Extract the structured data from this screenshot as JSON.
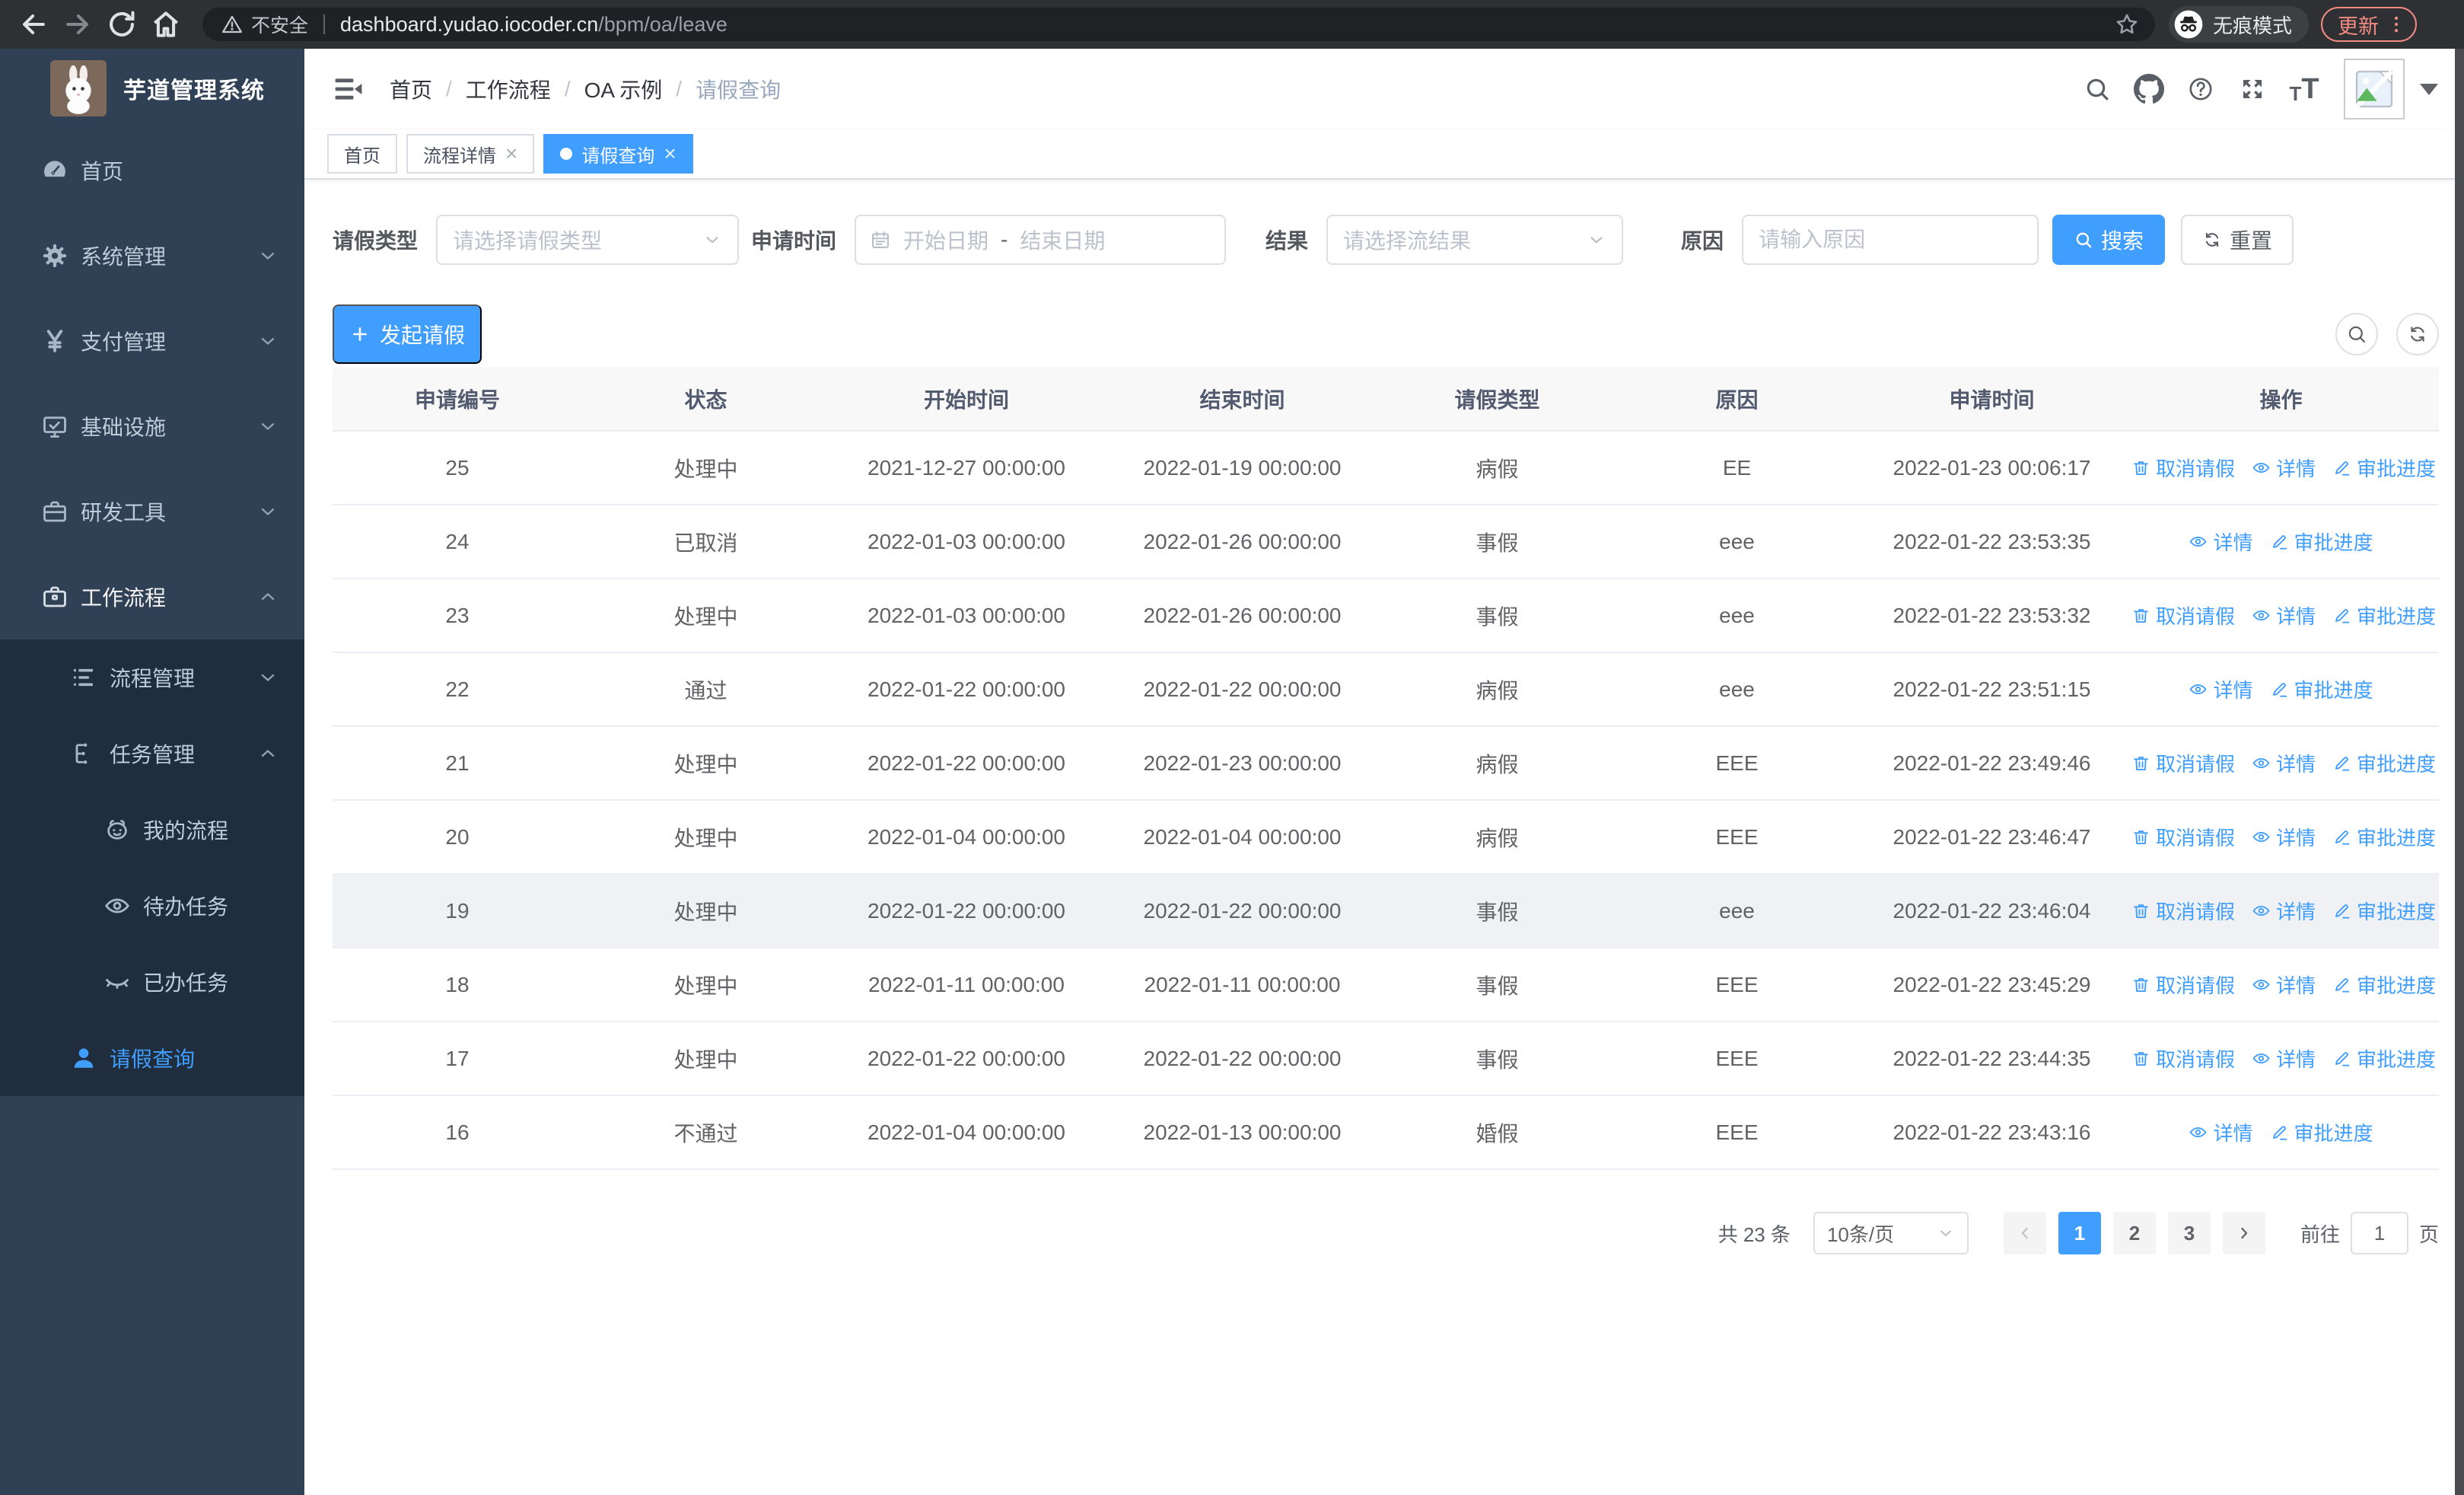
{
  "colors": {
    "accent": "#409eff",
    "sidebar_bg": "#304156",
    "submenu_bg": "#1f2d3d",
    "update_btn": "#f28b82",
    "table_header_bg": "#f8f8f9"
  },
  "browser": {
    "security_label": "不安全",
    "url_host": "dashboard.yudao.iocoder.cn",
    "url_path": "/bpm/oa/leave",
    "incognito_label": "无痕模式",
    "update_label": "更新"
  },
  "sidebar": {
    "title": "芋道管理系统",
    "items": [
      {
        "label": "首页",
        "icon": "dashboard-icon",
        "level": 1,
        "group": "top"
      },
      {
        "label": "系统管理",
        "icon": "gear-icon",
        "level": 1,
        "chevron": "down",
        "group": "top"
      },
      {
        "label": "支付管理",
        "icon": "yen-icon",
        "level": 1,
        "chevron": "down",
        "group": "top"
      },
      {
        "label": "基础设施",
        "icon": "monitor-icon",
        "level": 1,
        "chevron": "down",
        "group": "top"
      },
      {
        "label": "研发工具",
        "icon": "briefcase-icon",
        "level": 1,
        "chevron": "down",
        "group": "top"
      },
      {
        "label": "工作流程",
        "icon": "toolbox-icon",
        "level": 1,
        "chevron": "up",
        "active": true,
        "group": "top"
      },
      {
        "label": "流程管理",
        "icon": "list-tree-icon",
        "level": 2,
        "chevron": "down",
        "group": "sub"
      },
      {
        "label": "任务管理",
        "icon": "org-icon",
        "level": 2,
        "chevron": "up",
        "group": "sub"
      },
      {
        "label": "我的流程",
        "icon": "robot-icon",
        "level": 3,
        "group": "sub"
      },
      {
        "label": "待办任务",
        "icon": "eye-open-icon",
        "level": 3,
        "group": "sub"
      },
      {
        "label": "已办任务",
        "icon": "eye-closed-icon",
        "level": 3,
        "group": "sub"
      },
      {
        "label": "请假查询",
        "icon": "user-icon",
        "level": 2,
        "selected": true,
        "group": "sub"
      }
    ]
  },
  "breadcrumb": [
    "首页",
    "工作流程",
    "OA 示例",
    "请假查询"
  ],
  "tabs": [
    {
      "label": "首页",
      "closable": false,
      "active": false
    },
    {
      "label": "流程详情",
      "closable": true,
      "active": false
    },
    {
      "label": "请假查询",
      "closable": true,
      "active": true
    }
  ],
  "filters": {
    "leave_type_label": "请假类型",
    "leave_type_placeholder": "请选择请假类型",
    "apply_time_label": "申请时间",
    "start_date_placeholder": "开始日期",
    "range_separator": "-",
    "end_date_placeholder": "结束日期",
    "result_label": "结果",
    "result_placeholder": "请选择流结果",
    "reason_label": "原因",
    "reason_placeholder": "请输入原因",
    "search_label": "搜索",
    "reset_label": "重置"
  },
  "toolbar": {
    "create_label": "发起请假"
  },
  "table": {
    "columns": [
      "申请编号",
      "状态",
      "开始时间",
      "结束时间",
      "请假类型",
      "原因",
      "申请时间",
      "操作"
    ],
    "action_labels": {
      "cancel": "取消请假",
      "detail": "详情",
      "progress": "审批进度"
    },
    "rows": [
      {
        "id": "25",
        "status": "处理中",
        "start": "2021-12-27 00:00:00",
        "end": "2022-01-19 00:00:00",
        "type": "病假",
        "reason": "EE",
        "apply_time": "2022-01-23 00:06:17",
        "actions": [
          "cancel",
          "detail",
          "progress"
        ],
        "highlight": false
      },
      {
        "id": "24",
        "status": "已取消",
        "start": "2022-01-03 00:00:00",
        "end": "2022-01-26 00:00:00",
        "type": "事假",
        "reason": "eee",
        "apply_time": "2022-01-22 23:53:35",
        "actions": [
          "detail",
          "progress"
        ],
        "highlight": false
      },
      {
        "id": "23",
        "status": "处理中",
        "start": "2022-01-03 00:00:00",
        "end": "2022-01-26 00:00:00",
        "type": "事假",
        "reason": "eee",
        "apply_time": "2022-01-22 23:53:32",
        "actions": [
          "cancel",
          "detail",
          "progress"
        ],
        "highlight": false
      },
      {
        "id": "22",
        "status": "通过",
        "start": "2022-01-22 00:00:00",
        "end": "2022-01-22 00:00:00",
        "type": "病假",
        "reason": "eee",
        "apply_time": "2022-01-22 23:51:15",
        "actions": [
          "detail",
          "progress"
        ],
        "highlight": false
      },
      {
        "id": "21",
        "status": "处理中",
        "start": "2022-01-22 00:00:00",
        "end": "2022-01-23 00:00:00",
        "type": "病假",
        "reason": "EEE",
        "apply_time": "2022-01-22 23:49:46",
        "actions": [
          "cancel",
          "detail",
          "progress"
        ],
        "highlight": false
      },
      {
        "id": "20",
        "status": "处理中",
        "start": "2022-01-04 00:00:00",
        "end": "2022-01-04 00:00:00",
        "type": "病假",
        "reason": "EEE",
        "apply_time": "2022-01-22 23:46:47",
        "actions": [
          "cancel",
          "detail",
          "progress"
        ],
        "highlight": false
      },
      {
        "id": "19",
        "status": "处理中",
        "start": "2022-01-22 00:00:00",
        "end": "2022-01-22 00:00:00",
        "type": "事假",
        "reason": "eee",
        "apply_time": "2022-01-22 23:46:04",
        "actions": [
          "cancel",
          "detail",
          "progress"
        ],
        "highlight": true
      },
      {
        "id": "18",
        "status": "处理中",
        "start": "2022-01-11 00:00:00",
        "end": "2022-01-11 00:00:00",
        "type": "事假",
        "reason": "EEE",
        "apply_time": "2022-01-22 23:45:29",
        "actions": [
          "cancel",
          "detail",
          "progress"
        ],
        "highlight": false
      },
      {
        "id": "17",
        "status": "处理中",
        "start": "2022-01-22 00:00:00",
        "end": "2022-01-22 00:00:00",
        "type": "事假",
        "reason": "EEE",
        "apply_time": "2022-01-22 23:44:35",
        "actions": [
          "cancel",
          "detail",
          "progress"
        ],
        "highlight": false
      },
      {
        "id": "16",
        "status": "不通过",
        "start": "2022-01-04 00:00:00",
        "end": "2022-01-13 00:00:00",
        "type": "婚假",
        "reason": "EEE",
        "apply_time": "2022-01-22 23:43:16",
        "actions": [
          "detail",
          "progress"
        ],
        "highlight": false
      }
    ]
  },
  "pagination": {
    "total_label": "共 23 条",
    "page_size_label": "10条/页",
    "pages": [
      "1",
      "2",
      "3"
    ],
    "active_page": "1",
    "goto_label": "前往",
    "goto_value": "1",
    "page_unit": "页"
  }
}
